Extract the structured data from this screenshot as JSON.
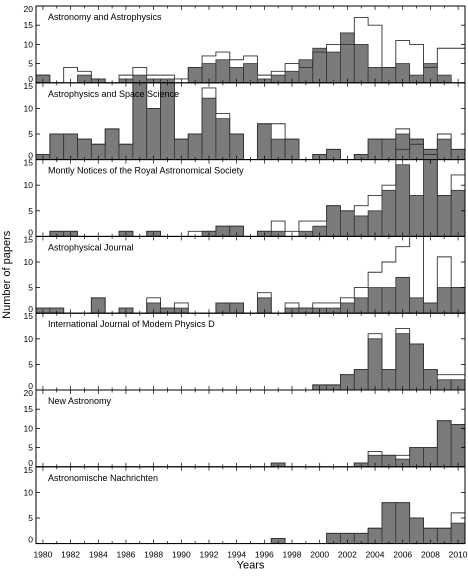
{
  "chart_data": {
    "type": "bar",
    "x_label": "Years",
    "y_label": "Number of papers",
    "x_ticks": [
      "1980",
      "1982",
      "1984",
      "1986",
      "1988",
      "1990",
      "1992",
      "1994",
      "1996",
      "1998",
      "2000",
      "2002",
      "2004",
      "2006",
      "2008",
      "2010"
    ],
    "x_range": [
      1979.5,
      2010.5
    ],
    "years": [
      1980,
      1981,
      1982,
      1983,
      1984,
      1985,
      1986,
      1987,
      1988,
      1989,
      1990,
      1991,
      1992,
      1993,
      1994,
      1995,
      1996,
      1997,
      1998,
      1999,
      2000,
      2001,
      2002,
      2003,
      2004,
      2005,
      2006,
      2007,
      2008,
      2009,
      2010
    ],
    "series_style": {
      "filled": {
        "fill": "#7b7b7b",
        "stroke": "#333333"
      },
      "outline": {
        "fill": "none",
        "stroke": "#333333"
      }
    },
    "panels": [
      {
        "title": "Astronomy and Astrophysics",
        "ylim": [
          0,
          20
        ],
        "y_ticks": [
          0,
          5,
          10,
          15,
          20
        ],
        "filled": [
          2,
          0,
          0,
          2,
          1,
          0,
          1,
          2,
          1,
          1,
          0,
          4,
          5,
          6,
          4,
          5,
          1,
          2,
          3,
          6,
          9,
          8,
          13,
          10,
          4,
          4,
          5,
          2,
          5,
          2,
          0
        ],
        "outline": [
          2,
          0,
          4,
          3,
          1,
          0,
          2,
          4,
          2,
          2,
          1,
          4,
          7,
          8,
          6,
          7,
          2,
          3,
          5,
          4,
          8,
          10,
          10,
          17,
          15,
          4,
          11,
          10,
          4,
          9,
          9
        ]
      },
      {
        "title": "Astrophysics and Space Science",
        "ylim": [
          0,
          15
        ],
        "y_ticks": [
          0,
          5,
          10,
          15
        ],
        "filled": [
          1,
          5,
          5,
          4,
          3,
          6,
          3,
          15,
          10,
          15,
          4,
          5,
          12,
          8,
          5,
          0,
          7,
          4,
          4,
          0,
          1,
          2,
          0,
          1,
          4,
          4,
          5,
          4,
          2,
          4,
          2
        ],
        "outline": [
          1,
          5,
          5,
          4,
          3,
          6,
          3,
          15,
          10,
          15,
          4,
          5,
          14,
          9,
          5,
          0,
          7,
          7,
          4,
          0,
          1,
          2,
          0,
          1,
          4,
          4,
          6,
          4,
          2,
          5,
          2
        ]
      },
      {
        "title": "Montly Notices of the Royal Astronomical Society",
        "ylim": [
          0,
          15
        ],
        "y_ticks": [
          0,
          5,
          10,
          15
        ],
        "filled": [
          0,
          1,
          1,
          0,
          0,
          0,
          1,
          0,
          1,
          0,
          0,
          0,
          1,
          2,
          2,
          0,
          1,
          1,
          0,
          1,
          2,
          6,
          5,
          4,
          5,
          9,
          14,
          8,
          16,
          8,
          9
        ],
        "outline": [
          0,
          1,
          1,
          0,
          0,
          0,
          1,
          0,
          1,
          0,
          0,
          1,
          1,
          2,
          2,
          0,
          1,
          3,
          1,
          3,
          3,
          6,
          5,
          6,
          8,
          10,
          17,
          18,
          16,
          8,
          12
        ]
      },
      {
        "title": "Astrophysical Journal",
        "ylim": [
          0,
          15
        ],
        "y_ticks": [
          0,
          5,
          10,
          15
        ],
        "filled": [
          1,
          1,
          0,
          0,
          3,
          0,
          1,
          0,
          2,
          1,
          1,
          0,
          0,
          2,
          2,
          0,
          3,
          0,
          1,
          1,
          1,
          1,
          2,
          3,
          5,
          5,
          7,
          3,
          2,
          5,
          5
        ],
        "outline": [
          1,
          1,
          0,
          0,
          3,
          0,
          1,
          0,
          3,
          1,
          2,
          0,
          0,
          2,
          2,
          0,
          4,
          0,
          2,
          1,
          2,
          2,
          3,
          5,
          8,
          10,
          13,
          15,
          2,
          11,
          5
        ]
      },
      {
        "title": "International Journal of Modem Physics D",
        "ylim": [
          0,
          15
        ],
        "y_ticks": [
          0,
          5,
          10,
          15
        ],
        "filled": [
          0,
          0,
          0,
          0,
          0,
          0,
          0,
          0,
          0,
          0,
          0,
          0,
          0,
          0,
          0,
          0,
          0,
          0,
          0,
          0,
          1,
          1,
          3,
          4,
          10,
          4,
          11,
          9,
          4,
          2,
          2
        ],
        "outline": [
          0,
          0,
          0,
          0,
          0,
          0,
          0,
          0,
          0,
          0,
          0,
          0,
          0,
          0,
          0,
          0,
          0,
          0,
          0,
          0,
          1,
          1,
          3,
          4,
          11,
          4,
          12,
          9,
          4,
          3,
          3
        ]
      },
      {
        "title": "New Astronomy",
        "ylim": [
          0,
          20
        ],
        "y_ticks": [
          0,
          5,
          10,
          15,
          20
        ],
        "filled": [
          0,
          0,
          0,
          0,
          0,
          0,
          0,
          0,
          0,
          0,
          0,
          0,
          0,
          0,
          0,
          0,
          0,
          1,
          0,
          0,
          0,
          0,
          0,
          1,
          3,
          3,
          2,
          5,
          5,
          12,
          11
        ],
        "outline": [
          0,
          0,
          0,
          0,
          0,
          0,
          0,
          0,
          0,
          0,
          0,
          0,
          0,
          0,
          0,
          0,
          0,
          1,
          0,
          0,
          0,
          0,
          0,
          1,
          4,
          3,
          3,
          5,
          5,
          12,
          11
        ]
      },
      {
        "title": "Astronomische Nachrichten",
        "ylim": [
          0,
          15
        ],
        "y_ticks": [
          0,
          5,
          10,
          15
        ],
        "filled": [
          0,
          0,
          0,
          0,
          0,
          0,
          0,
          0,
          0,
          0,
          0,
          0,
          0,
          0,
          0,
          0,
          0,
          1,
          0,
          0,
          0,
          2,
          2,
          2,
          3,
          8,
          8,
          5,
          3,
          3,
          4
        ],
        "outline": [
          0,
          0,
          0,
          0,
          0,
          0,
          0,
          0,
          0,
          0,
          0,
          0,
          0,
          0,
          0,
          0,
          0,
          1,
          0,
          0,
          0,
          2,
          2,
          2,
          3,
          8,
          8,
          5,
          3,
          3,
          6
        ]
      }
    ]
  }
}
